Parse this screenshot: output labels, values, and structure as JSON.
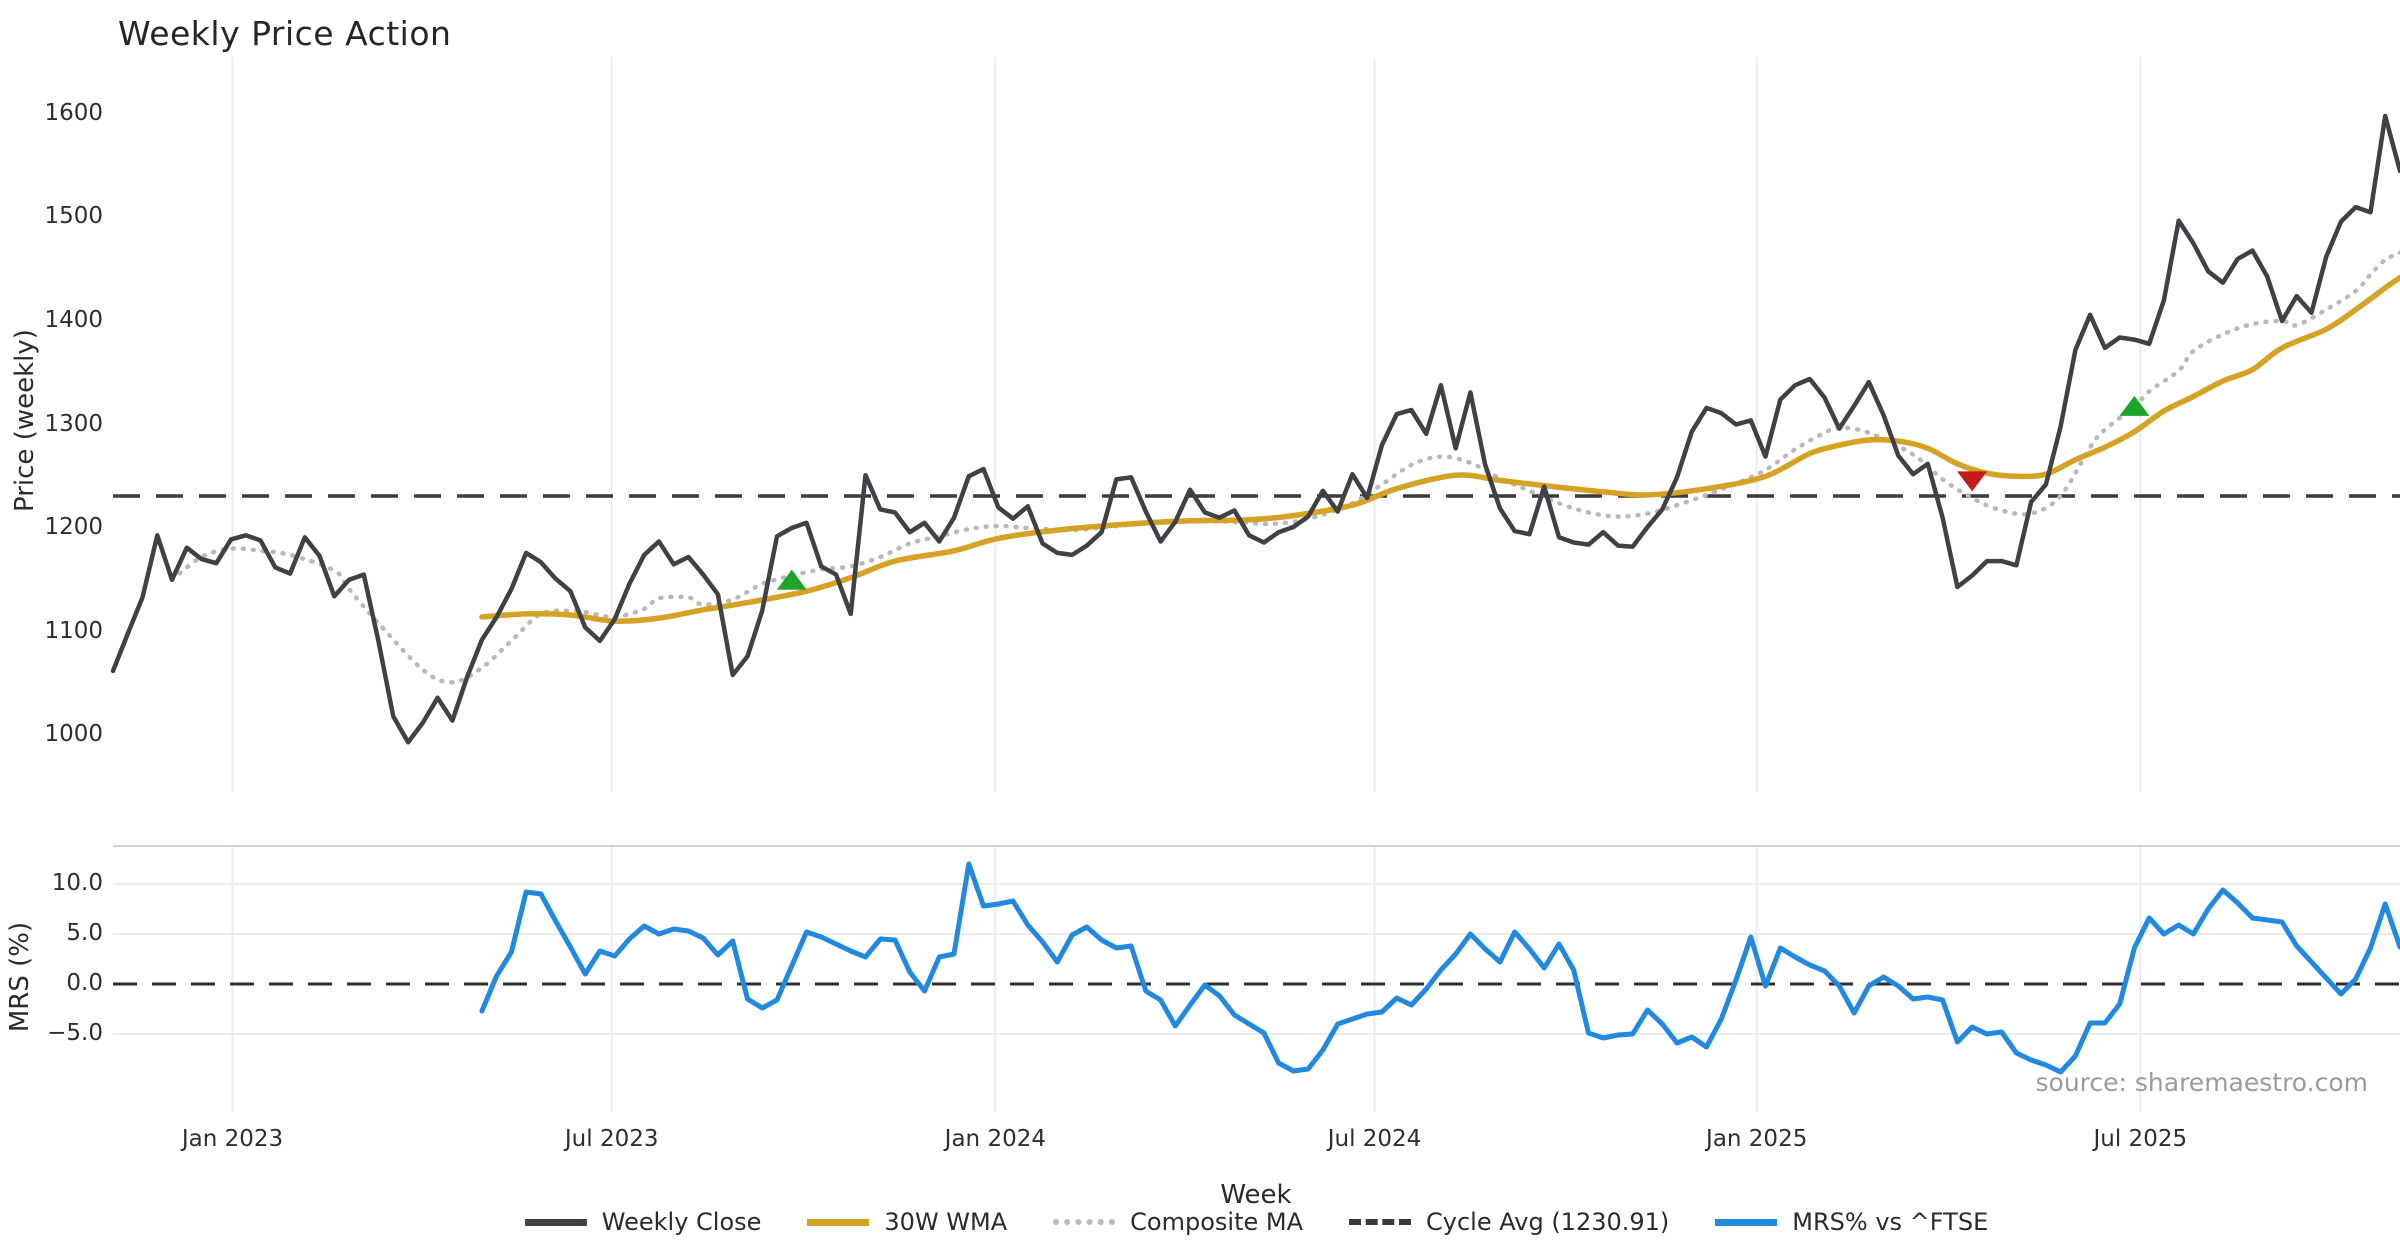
{
  "title": "Weekly Price Action",
  "price_panel": {
    "ylabel": "Price (weekly)",
    "yticks": [
      "1600",
      "1500",
      "1400",
      "1300",
      "1200",
      "1100",
      "1000"
    ],
    "ytick_values": [
      1600,
      1500,
      1400,
      1300,
      1200,
      1100,
      1000
    ],
    "ylim": [
      945,
      1655
    ],
    "cycle_avg_value": 1230.91
  },
  "mrs_panel": {
    "ylabel": "MRS (%)",
    "yticks": [
      "10.0",
      "5.0",
      "0.0",
      "−5.0"
    ],
    "ytick_values": [
      10,
      5,
      0,
      -5
    ],
    "ylim": [
      -12.8,
      13.8
    ],
    "zero_line": 0,
    "source_text": "source: sharemaestro.com"
  },
  "x_axis": {
    "label": "Week",
    "tick_labels": [
      "Jan 2023",
      "Jul 2023",
      "Jan 2024",
      "Jul 2024",
      "Jan 2025",
      "Jul 2025"
    ],
    "tick_weeks": [
      8.1,
      33.8,
      59.8,
      85.5,
      111.4,
      137.4
    ],
    "total_weeks": 156
  },
  "legend": {
    "items": [
      {
        "label": "Weekly Close",
        "swatch": "solid",
        "color_key": "close"
      },
      {
        "label": "30W WMA",
        "swatch": "solid",
        "color_key": "wma"
      },
      {
        "label": "Composite MA",
        "swatch": "dotted",
        "color_key": "composite"
      },
      {
        "label": "Cycle Avg (1230.91)",
        "swatch": "dashed",
        "color_key": "cycle"
      },
      {
        "label": "MRS% vs ^FTSE",
        "swatch": "solid",
        "color_key": "mrs"
      }
    ]
  },
  "colors": {
    "close": "#3e4146",
    "wma": "#d5a226",
    "composite": "#b9b9bc",
    "cycle": "#3a3a3a",
    "mrs": "#2289e0",
    "buy": "#1ea32b",
    "sell": "#c41a1a",
    "grid": "#ececef",
    "panel_border": "#d2d2d9",
    "text": "#2b2b2b",
    "source": "#9b9b9b"
  },
  "chart_data": {
    "type": "line",
    "title": "Weekly Price Action",
    "xlabel": "Week",
    "ylabel_price": "Price (weekly)",
    "ylabel_mrs": "MRS (%)",
    "x_is_weekly_index": true,
    "series": [
      {
        "name": "Weekly Close",
        "panel": "price",
        "start_week": 0,
        "values": [
          1062,
          1098,
          1133,
          1193,
          1150,
          1181,
          1170,
          1166,
          1189,
          1193,
          1188,
          1162,
          1156,
          1191,
          1173,
          1134,
          1150,
          1155,
          1090,
          1018,
          993,
          1012,
          1036,
          1014,
          1056,
          1092,
          1114,
          1141,
          1176,
          1167,
          1151,
          1139,
          1104,
          1091,
          1112,
          1146,
          1174,
          1187,
          1165,
          1172,
          1155,
          1136,
          1058,
          1076,
          1120,
          1192,
          1200,
          1205,
          1163,
          1155,
          1117,
          1251,
          1218,
          1215,
          1196,
          1205,
          1187,
          1210,
          1250,
          1257,
          1220,
          1209,
          1221,
          1185,
          1176,
          1174,
          1183,
          1196,
          1247,
          1249,
          1216,
          1187,
          1206,
          1237,
          1215,
          1210,
          1217,
          1193,
          1186,
          1196,
          1201,
          1211,
          1236,
          1216,
          1252,
          1229,
          1280,
          1310,
          1314,
          1291,
          1338,
          1277,
          1331,
          1261,
          1219,
          1197,
          1194,
          1240,
          1191,
          1186,
          1184,
          1196,
          1183,
          1182,
          1201,
          1218,
          1249,
          1293,
          1316,
          1311,
          1300,
          1304,
          1269,
          1324,
          1338,
          1344,
          1326,
          1296,
          1318,
          1341,
          1309,
          1270,
          1252,
          1262,
          1210,
          1143,
          1154,
          1168,
          1168,
          1164,
          1225,
          1242,
          1298,
          1372,
          1406,
          1374,
          1384,
          1382,
          1378,
          1420,
          1497,
          1475,
          1448,
          1437,
          1460,
          1468,
          1443,
          1400,
          1424,
          1408,
          1462,
          1496,
          1510,
          1505,
          1598,
          1545
        ]
      },
      {
        "name": "30W WMA",
        "panel": "price",
        "smooth": true,
        "anchors": [
          [
            25,
            1114
          ],
          [
            28,
            1117
          ],
          [
            31,
            1116
          ],
          [
            34,
            1110
          ],
          [
            37,
            1113
          ],
          [
            40,
            1121
          ],
          [
            43,
            1128
          ],
          [
            47,
            1139
          ],
          [
            50,
            1152
          ],
          [
            53,
            1168
          ],
          [
            57,
            1178
          ],
          [
            60,
            1190
          ],
          [
            64,
            1198
          ],
          [
            69,
            1204
          ],
          [
            73,
            1207
          ],
          [
            77,
            1208
          ],
          [
            80,
            1212
          ],
          [
            84,
            1222
          ],
          [
            87,
            1238
          ],
          [
            91,
            1251
          ],
          [
            94,
            1246
          ],
          [
            97,
            1241
          ],
          [
            101,
            1235
          ],
          [
            104,
            1232
          ],
          [
            108,
            1238
          ],
          [
            112,
            1250
          ],
          [
            115,
            1272
          ],
          [
            117,
            1280
          ],
          [
            119,
            1285
          ],
          [
            121,
            1284
          ],
          [
            123,
            1277
          ],
          [
            125,
            1262
          ],
          [
            127,
            1253
          ],
          [
            129,
            1250
          ],
          [
            131,
            1252
          ],
          [
            133,
            1266
          ],
          [
            135,
            1278
          ],
          [
            137,
            1293
          ],
          [
            139,
            1313
          ],
          [
            141,
            1327
          ],
          [
            143,
            1342
          ],
          [
            145,
            1353
          ],
          [
            147,
            1374
          ],
          [
            150,
            1392
          ],
          [
            152,
            1411
          ],
          [
            154,
            1432
          ],
          [
            155,
            1442
          ]
        ]
      },
      {
        "name": "Composite MA",
        "panel": "price",
        "smooth": true,
        "dotted": true,
        "anchors": [
          [
            4,
            1150
          ],
          [
            6,
            1172
          ],
          [
            8,
            1180
          ],
          [
            10,
            1178
          ],
          [
            12,
            1174
          ],
          [
            15,
            1159
          ],
          [
            16,
            1141
          ],
          [
            18,
            1108
          ],
          [
            21,
            1063
          ],
          [
            23,
            1051
          ],
          [
            25,
            1065
          ],
          [
            27,
            1091
          ],
          [
            29,
            1117
          ],
          [
            31,
            1120
          ],
          [
            32,
            1119
          ],
          [
            34,
            1114
          ],
          [
            36,
            1122
          ],
          [
            37,
            1132
          ],
          [
            39,
            1133
          ],
          [
            40,
            1126
          ],
          [
            42,
            1131
          ],
          [
            44,
            1146
          ],
          [
            46,
            1154
          ],
          [
            48,
            1160
          ],
          [
            50,
            1163
          ],
          [
            52,
            1172
          ],
          [
            54,
            1185
          ],
          [
            56,
            1192
          ],
          [
            58,
            1199
          ],
          [
            60,
            1202
          ],
          [
            62,
            1200
          ],
          [
            65,
            1198
          ],
          [
            68,
            1202
          ],
          [
            72,
            1206
          ],
          [
            76,
            1206
          ],
          [
            78,
            1204
          ],
          [
            80,
            1206
          ],
          [
            82,
            1213
          ],
          [
            84,
            1224
          ],
          [
            86,
            1242
          ],
          [
            88,
            1261
          ],
          [
            90,
            1269
          ],
          [
            92,
            1263
          ],
          [
            94,
            1248
          ],
          [
            96,
            1236
          ],
          [
            98,
            1224
          ],
          [
            100,
            1215
          ],
          [
            102,
            1211
          ],
          [
            104,
            1214
          ],
          [
            106,
            1222
          ],
          [
            108,
            1232
          ],
          [
            110,
            1243
          ],
          [
            112,
            1256
          ],
          [
            114,
            1276
          ],
          [
            116,
            1292
          ],
          [
            117,
            1297
          ],
          [
            119,
            1292
          ],
          [
            122,
            1271
          ],
          [
            124,
            1247
          ],
          [
            126,
            1229
          ],
          [
            128,
            1217
          ],
          [
            130,
            1214
          ],
          [
            132,
            1231
          ],
          [
            134,
            1278
          ],
          [
            135,
            1295
          ],
          [
            137,
            1317
          ],
          [
            138,
            1332
          ],
          [
            140,
            1352
          ],
          [
            141,
            1371
          ],
          [
            143,
            1387
          ],
          [
            145,
            1397
          ],
          [
            147,
            1400
          ],
          [
            148,
            1396
          ],
          [
            150,
            1411
          ],
          [
            152,
            1429
          ],
          [
            153,
            1445
          ],
          [
            154,
            1459
          ],
          [
            155,
            1466
          ]
        ]
      },
      {
        "name": "Cycle Avg (1230.91)",
        "panel": "price",
        "hline": 1230.91
      },
      {
        "name": "MRS% vs ^FTSE",
        "panel": "mrs",
        "start_week": 25,
        "values": [
          -2.7,
          0.8,
          3.2,
          9.2,
          9.0,
          6.3,
          3.7,
          1.0,
          3.3,
          2.8,
          4.5,
          5.8,
          5.0,
          5.5,
          5.3,
          4.6,
          2.9,
          4.3,
          -1.5,
          -2.4,
          -1.6,
          1.8,
          5.2,
          4.7,
          4.0,
          3.3,
          2.7,
          4.5,
          4.4,
          1.2,
          -0.7,
          2.7,
          3.0,
          12.0,
          7.8,
          8.0,
          8.3,
          5.9,
          4.2,
          2.2,
          4.9,
          5.7,
          4.4,
          3.6,
          3.8,
          -0.7,
          -1.6,
          -4.2,
          -2.1,
          -0.1,
          -1.2,
          -3.1,
          -4.0,
          -4.9,
          -7.9,
          -8.7,
          -8.5,
          -6.6,
          -4.0,
          -3.5,
          -3.0,
          -2.8,
          -1.4,
          -2.1,
          -0.5,
          1.4,
          3.0,
          5.0,
          3.5,
          2.2,
          5.2,
          3.5,
          1.6,
          4.0,
          1.4,
          -4.9,
          -5.4,
          -5.1,
          -5.0,
          -2.6,
          -4.0,
          -5.9,
          -5.3,
          -6.3,
          -3.5,
          0.4,
          4.7,
          -0.2,
          3.6,
          2.7,
          1.9,
          1.3,
          -0.2,
          -2.9,
          -0.2,
          0.7,
          -0.2,
          -1.5,
          -1.3,
          -1.6,
          -5.8,
          -4.3,
          -5.0,
          -4.8,
          -6.9,
          -7.6,
          -8.1,
          -8.8,
          -7.2,
          -3.9,
          -3.9,
          -2.0,
          3.6,
          6.6,
          5.0,
          5.9,
          5.0,
          7.5,
          9.4,
          8.1,
          6.6,
          6.4,
          6.2,
          3.8,
          2.2,
          0.6,
          -1.0,
          0.5,
          3.6,
          8.0,
          3.7
        ]
      }
    ],
    "markers": [
      {
        "signal": "buy",
        "shape": "triangle-up",
        "week": 46,
        "value": 1150
      },
      {
        "signal": "sell",
        "shape": "triangle-down",
        "week": 126,
        "value": 1245
      },
      {
        "signal": "buy",
        "shape": "triangle-up",
        "week": 137,
        "value": 1318
      }
    ],
    "grid": "vertical-both-panels, horizontal-mrs-only",
    "legend_position": "bottom-center"
  }
}
